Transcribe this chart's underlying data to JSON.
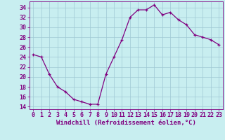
{
  "x": [
    0,
    1,
    2,
    3,
    4,
    5,
    6,
    7,
    8,
    9,
    10,
    11,
    12,
    13,
    14,
    15,
    16,
    17,
    18,
    19,
    20,
    21,
    22,
    23
  ],
  "y": [
    24.5,
    24.0,
    20.5,
    18.0,
    17.0,
    15.5,
    15.0,
    14.5,
    14.5,
    20.5,
    24.0,
    27.5,
    32.0,
    33.5,
    33.5,
    34.5,
    32.5,
    33.0,
    31.5,
    30.5,
    28.5,
    28.0,
    27.5,
    26.5
  ],
  "line_color": "#800080",
  "marker": "+",
  "bg_color": "#c8eef0",
  "grid_color": "#9fc8d4",
  "xlabel": "Windchill (Refroidissement éolien,°C)",
  "xlabel_fontsize": 6.5,
  "tick_fontsize": 6,
  "ylim": [
    13.5,
    35.2
  ],
  "yticks": [
    14,
    16,
    18,
    20,
    22,
    24,
    26,
    28,
    30,
    32,
    34
  ],
  "xlim": [
    -0.5,
    23.5
  ],
  "xticks": [
    0,
    1,
    2,
    3,
    4,
    5,
    6,
    7,
    8,
    9,
    10,
    11,
    12,
    13,
    14,
    15,
    16,
    17,
    18,
    19,
    20,
    21,
    22,
    23
  ]
}
